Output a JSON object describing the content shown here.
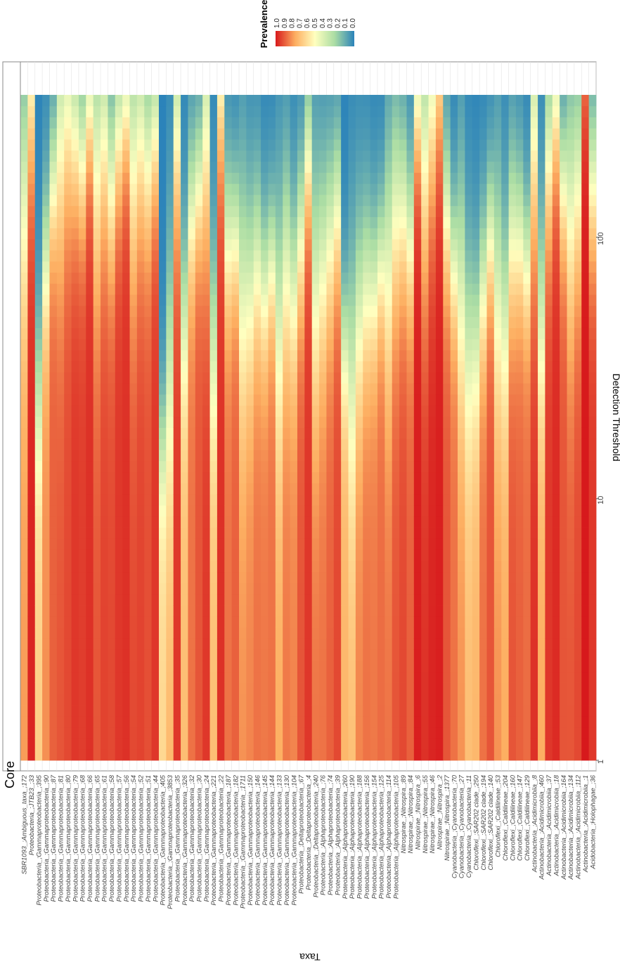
{
  "chart_data": {
    "type": "heatmap",
    "title": "Core",
    "xlabel": "Taxa",
    "ylabel": "Detection Threshold",
    "threshold_ticks": [
      {
        "label": "1",
        "value": 1
      },
      {
        "label": "10",
        "value": 10
      },
      {
        "label": "100",
        "value": 100
      }
    ],
    "threshold_range": [
      1,
      350
    ],
    "threshold_scale": "log",
    "legend": {
      "title": "Prevalence",
      "position": "top-right",
      "labels": [
        "1.0",
        "0.9",
        "0.8",
        "0.7",
        "0.6",
        "0.5",
        "0.4",
        "0.3",
        "0.2",
        "0.1",
        "0.0"
      ],
      "colors": [
        "#d7191c",
        "#fdae61",
        "#ffffbf",
        "#abdda4",
        "#2b83ba"
      ]
    },
    "taxa": [
      {
        "label": "SBR1093_;Ambiguous_taxa_;172",
        "start": 0.78,
        "mid": 2.2
      },
      {
        "label": "Proteobacteria_;JTB23_;33",
        "start": 0.98,
        "mid": 2.6
      },
      {
        "label": "Proteobacteria_;Gammaproteobacteria_;395",
        "start": 0.65,
        "mid": 1.4
      },
      {
        "label": "Proteobacteria_;Gammaproteobacteria_;90",
        "start": 0.8,
        "mid": 1.9
      },
      {
        "label": "Proteobacteria_;Gammaproteobacteria_;87",
        "start": 0.88,
        "mid": 2.2
      },
      {
        "label": "Proteobacteria_;Gammaproteobacteria_;81",
        "start": 0.9,
        "mid": 2.4
      },
      {
        "label": "Proteobacteria_;Gammaproteobacteria_;80",
        "start": 0.92,
        "mid": 2.5
      },
      {
        "label": "Proteobacteria_;Gammaproteobacteria_;79",
        "start": 0.95,
        "mid": 2.4
      },
      {
        "label": "Proteobacteria_;Gammaproteobacteria_;68",
        "start": 0.94,
        "mid": 2.3
      },
      {
        "label": "Proteobacteria_;Gammaproteobacteria_;66",
        "start": 0.96,
        "mid": 2.5
      },
      {
        "label": "Proteobacteria_;Gammaproteobacteria_;65",
        "start": 0.9,
        "mid": 2.3
      },
      {
        "label": "Proteobacteria_;Gammaproteobacteria_;61",
        "start": 0.93,
        "mid": 2.4
      },
      {
        "label": "Proteobacteria_;Gammaproteobacteria_;58",
        "start": 0.92,
        "mid": 2.2
      },
      {
        "label": "Proteobacteria_;Gammaproteobacteria_;57",
        "start": 0.95,
        "mid": 2.4
      },
      {
        "label": "Proteobacteria_;Gammaproteobacteria_;56",
        "start": 0.96,
        "mid": 2.5
      },
      {
        "label": "Proteobacteria_;Gammaproteobacteria_;54",
        "start": 0.92,
        "mid": 2.3
      },
      {
        "label": "Proteobacteria_;Gammaproteobacteria_;52",
        "start": 0.93,
        "mid": 2.4
      },
      {
        "label": "Proteobacteria_;Gammaproteobacteria_;51",
        "start": 0.91,
        "mid": 2.3
      },
      {
        "label": "Proteobacteria_;Gammaproteobacteria_;44",
        "start": 0.95,
        "mid": 2.4
      },
      {
        "label": "Proteobacteria_;Gammaproteobacteria_;405",
        "start": 0.62,
        "mid": 1.2
      },
      {
        "label": "Proteobacteria_;Gammaproteobacteria_;3853",
        "start": 0.72,
        "mid": 1.5
      },
      {
        "label": "Proteobacteria_;Gammaproteobacteria_;35",
        "start": 0.95,
        "mid": 2.4
      },
      {
        "label": "Proteobacteria_;Gammaproteobacteria_;326",
        "start": 0.7,
        "mid": 1.7
      },
      {
        "label": "Proteobacteria_;Gammaproteobacteria_;32",
        "start": 0.85,
        "mid": 2.1
      },
      {
        "label": "Proteobacteria_;Gammaproteobacteria_;30",
        "start": 0.9,
        "mid": 2.2
      },
      {
        "label": "Proteobacteria_;Gammaproteobacteria_;24",
        "start": 0.95,
        "mid": 2.4
      },
      {
        "label": "Proteobacteria_;Gammaproteobacteria_;221",
        "start": 0.7,
        "mid": 1.6
      },
      {
        "label": "Proteobacteria_;Gammaproteobacteria_;22",
        "start": 0.96,
        "mid": 2.6
      },
      {
        "label": "Proteobacteria_;Gammaproteobacteria_;187",
        "start": 0.85,
        "mid": 2.0
      },
      {
        "label": "Proteobacteria_;Gammaproteobacteria_;182",
        "start": 0.88,
        "mid": 2.0
      },
      {
        "label": "Proteobacteria_;Gammaproteobacteria_;1711",
        "start": 0.8,
        "mid": 1.8
      },
      {
        "label": "Proteobacteria_;Gammaproteobacteria_;150",
        "start": 0.82,
        "mid": 1.8
      },
      {
        "label": "Proteobacteria_;Gammaproteobacteria_;146",
        "start": 0.85,
        "mid": 1.9
      },
      {
        "label": "Proteobacteria_;Gammaproteobacteria_;145",
        "start": 0.84,
        "mid": 1.8
      },
      {
        "label": "Proteobacteria_;Gammaproteobacteria_;144",
        "start": 0.85,
        "mid": 1.9
      },
      {
        "label": "Proteobacteria_;Gammaproteobacteria_;133",
        "start": 0.75,
        "mid": 1.7
      },
      {
        "label": "Proteobacteria_;Gammaproteobacteria_;130",
        "start": 0.84,
        "mid": 1.9
      },
      {
        "label": "Proteobacteria_;Gammaproteobacteria_;104",
        "start": 0.82,
        "mid": 1.8
      },
      {
        "label": "Proteobacteria_;Deltaproteobacteria_;67",
        "start": 0.9,
        "mid": 2.0
      },
      {
        "label": "Proteobacteria_;Deltaproteobacteria_;4",
        "start": 0.95,
        "mid": 2.3
      },
      {
        "label": "Proteobacteria_;Deltaproteobacteria_;240",
        "start": 0.85,
        "mid": 1.8
      },
      {
        "label": "Proteobacteria_;Alphaproteobacteria_;76",
        "start": 0.85,
        "mid": 1.9
      },
      {
        "label": "Proteobacteria_;Alphaproteobacteria_;74",
        "start": 0.88,
        "mid": 2.0
      },
      {
        "label": "Proteobacteria_;Alphaproteobacteria_;39",
        "start": 0.92,
        "mid": 2.1
      },
      {
        "label": "Proteobacteria_;Alphaproteobacteria_;260",
        "start": 0.72,
        "mid": 1.6
      },
      {
        "label": "Proteobacteria_;Alphaproteobacteria_;190",
        "start": 0.7,
        "mid": 1.5
      },
      {
        "label": "Proteobacteria_;Alphaproteobacteria_;188",
        "start": 0.82,
        "mid": 1.7
      },
      {
        "label": "Proteobacteria_;Alphaproteobacteria_;156",
        "start": 0.85,
        "mid": 1.8
      },
      {
        "label": "Proteobacteria_;Alphaproteobacteria_;154",
        "start": 0.84,
        "mid": 1.8
      },
      {
        "label": "Proteobacteria_;Alphaproteobacteria_;125",
        "start": 0.86,
        "mid": 1.9
      },
      {
        "label": "Proteobacteria_;Alphaproteobacteria_;114",
        "start": 0.85,
        "mid": 1.9
      },
      {
        "label": "Proteobacteria_;Alphaproteobacteria_;105",
        "start": 0.9,
        "mid": 2.1
      },
      {
        "label": "Nitrospirae_;Nitrospira_;89",
        "start": 0.92,
        "mid": 2.1
      },
      {
        "label": "Nitrospirae_;Nitrospira_;84",
        "start": 0.88,
        "mid": 2.0
      },
      {
        "label": "Nitrospirae_;Nitrospira_;6",
        "start": 0.99,
        "mid": 2.5
      },
      {
        "label": "Nitrospirae_;Nitrospira_;55",
        "start": 0.96,
        "mid": 2.3
      },
      {
        "label": "Nitrospirae_;Nitrospira_;46",
        "start": 0.98,
        "mid": 2.5
      },
      {
        "label": "Nitrospirae_;Nitrospira_;2",
        "start": 0.99,
        "mid": 2.7
      },
      {
        "label": "Nitrospirae_;Nitrospira_;1377",
        "start": 0.9,
        "mid": 2.1
      },
      {
        "label": "Cyanobacteria_;Cyanobacteria_;70",
        "start": 0.85,
        "mid": 1.9
      },
      {
        "label": "Cyanobacteria_;Cyanobacteria_;27",
        "start": 0.8,
        "mid": 1.8
      },
      {
        "label": "Cyanobacteria_;Cyanobacteria_;11",
        "start": 0.7,
        "mid": 1.6
      },
      {
        "label": "Chloroflexi_;SAR202 clade_;250",
        "start": 0.72,
        "mid": 1.6
      },
      {
        "label": "Chloroflexi_;SAR202 clade_;194",
        "start": 0.85,
        "mid": 1.8
      },
      {
        "label": "Chloroflexi_;SAR202 clade_;140",
        "start": 0.9,
        "mid": 2.0
      },
      {
        "label": "Chloroflexi_;Caldilineae_;53",
        "start": 0.8,
        "mid": 1.8
      },
      {
        "label": "Chloroflexi_;Caldilineae_;204",
        "start": 0.75,
        "mid": 1.7
      },
      {
        "label": "Chloroflexi_;Caldilineae_;160",
        "start": 0.9,
        "mid": 2.0
      },
      {
        "label": "Chloroflexi_;Caldilineae_;147",
        "start": 0.88,
        "mid": 2.0
      },
      {
        "label": "Chloroflexi_;Caldilineae_;129",
        "start": 0.86,
        "mid": 1.9
      },
      {
        "label": "Actinobacteria_;Acidimicrobiia_;8",
        "start": 0.96,
        "mid": 2.4
      },
      {
        "label": "Actinobacteria_;Acidimicrobiia_;460",
        "start": 0.75,
        "mid": 1.7
      },
      {
        "label": "Actinobacteria_;Acidimicrobiia_;37",
        "start": 0.95,
        "mid": 2.3
      },
      {
        "label": "Actinobacteria_;Acidimicrobiia_;18",
        "start": 0.97,
        "mid": 2.5
      },
      {
        "label": "Actinobacteria_;Acidimicrobiia_;164",
        "start": 0.9,
        "mid": 2.2
      },
      {
        "label": "Actinobacteria_;Acidimicrobiia_;134",
        "start": 0.9,
        "mid": 2.1
      },
      {
        "label": "Actinobacteria_;Acidimicrobiia_;112",
        "start": 0.92,
        "mid": 2.2
      },
      {
        "label": "Actinobacteria_;Acidimicrobiia_;1",
        "start": 1.0,
        "mid": 3.0
      },
      {
        "label": "Acidobacteria_;Holophagae_;36",
        "start": 0.95,
        "mid": 2.2
      }
    ]
  }
}
